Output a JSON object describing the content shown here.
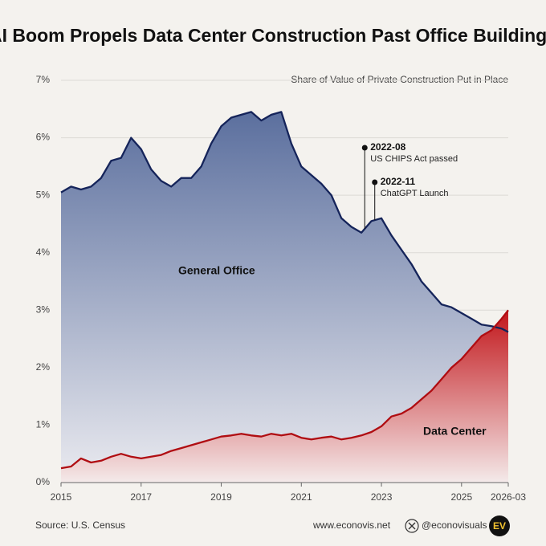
{
  "chart_data": {
    "type": "area",
    "title": "AI Boom Propels Data Center Construction Past Office Buildings",
    "subtitle": "Share of Value of Private Construction Put in Place",
    "source": "Source: U.S. Census",
    "x": [
      2015,
      2015.25,
      2015.5,
      2015.75,
      2016,
      2016.25,
      2016.5,
      2016.75,
      2017,
      2017.25,
      2017.5,
      2017.75,
      2018,
      2018.25,
      2018.5,
      2018.75,
      2019,
      2019.25,
      2019.5,
      2019.75,
      2020,
      2020.25,
      2020.5,
      2020.75,
      2021,
      2021.25,
      2021.5,
      2021.75,
      2022,
      2022.25,
      2022.5,
      2022.75,
      2023,
      2023.25,
      2023.5,
      2023.75,
      2024,
      2024.25,
      2024.5,
      2024.75,
      2025,
      2025.25,
      2025.5,
      2025.75,
      2026,
      2026.1667
    ],
    "series": [
      {
        "name": "General Office",
        "color": "#15245a",
        "fill_top": "#5b6f9e",
        "fill_bottom": "#ebebf0",
        "values": [
          5.05,
          5.15,
          5.1,
          5.15,
          5.3,
          5.6,
          5.65,
          6.0,
          5.8,
          5.45,
          5.25,
          5.15,
          5.3,
          5.3,
          5.5,
          5.9,
          6.2,
          6.35,
          6.4,
          6.45,
          6.3,
          6.4,
          6.45,
          5.9,
          5.5,
          5.35,
          5.2,
          5.0,
          4.6,
          4.45,
          4.35,
          4.55,
          4.6,
          4.3,
          4.05,
          3.8,
          3.5,
          3.3,
          3.1,
          3.05,
          2.95,
          2.85,
          2.75,
          2.72,
          2.68,
          2.62
        ]
      },
      {
        "name": "Data Center",
        "color": "#b00d12",
        "fill_top": "#c2161b",
        "fill_bottom": "#f4eaea",
        "values": [
          0.25,
          0.28,
          0.42,
          0.35,
          0.38,
          0.45,
          0.5,
          0.45,
          0.42,
          0.45,
          0.48,
          0.55,
          0.6,
          0.65,
          0.7,
          0.75,
          0.8,
          0.82,
          0.85,
          0.82,
          0.8,
          0.85,
          0.82,
          0.85,
          0.78,
          0.75,
          0.78,
          0.8,
          0.75,
          0.78,
          0.82,
          0.88,
          0.98,
          1.15,
          1.2,
          1.3,
          1.45,
          1.6,
          1.8,
          2.0,
          2.15,
          2.35,
          2.55,
          2.65,
          2.85,
          3.0
        ]
      }
    ],
    "xlim": [
      2015,
      2026.1667
    ],
    "xticks": [
      2015,
      2017,
      2019,
      2021,
      2023,
      2025,
      {
        "value": 2026.1667,
        "label": "2026-03"
      }
    ],
    "ylim": [
      0,
      7
    ],
    "yticks": [
      {
        "value": 0,
        "label": "0%"
      },
      {
        "value": 1,
        "label": "1%"
      },
      {
        "value": 2,
        "label": "2%"
      },
      {
        "value": 3,
        "label": "3%"
      },
      {
        "value": 4,
        "label": "4%"
      },
      {
        "value": 5,
        "label": "5%"
      },
      {
        "value": 6,
        "label": "6%"
      },
      {
        "value": 7,
        "label": "7%"
      }
    ],
    "grid": true,
    "annotations": [
      {
        "x": 2022.5833,
        "label": "2022-08",
        "text": "US CHIPS Act passed"
      },
      {
        "x": 2022.8333,
        "label": "2022-11",
        "text": "ChatGPT Launch"
      }
    ]
  },
  "footer": {
    "website": "www.econovis.net",
    "handle": "@econovisuals",
    "logo": "EV"
  }
}
